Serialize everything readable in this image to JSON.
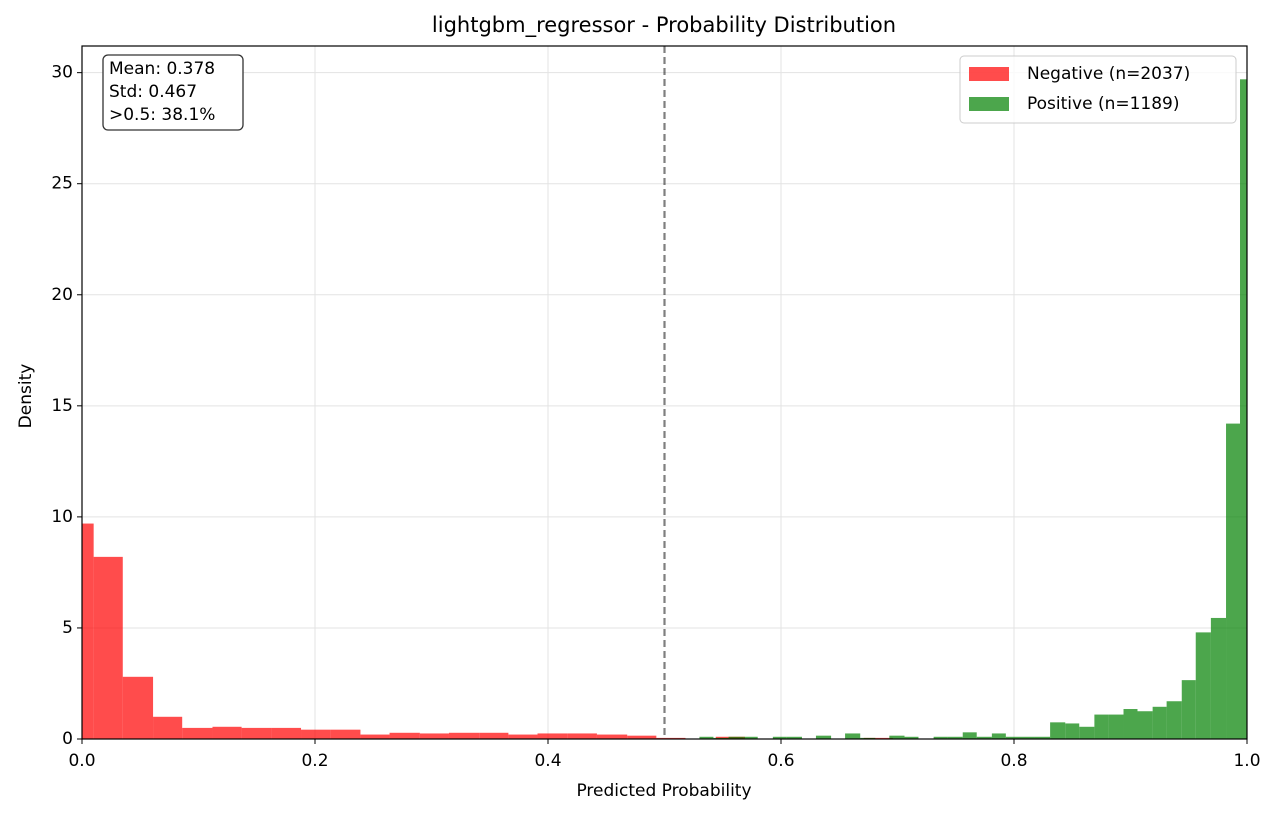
{
  "chart_data": {
    "type": "histogram",
    "title": "lightgbm_regressor - Probability Distribution",
    "xlabel": "Predicted Probability",
    "ylabel": "Density",
    "xlim": [
      0,
      1
    ],
    "ylim": [
      0,
      31.2
    ],
    "xticks": [
      {
        "value": 0,
        "label": "0.0"
      },
      0.2,
      0.4,
      0.6,
      0.8,
      {
        "value": 1,
        "label": "1.0"
      }
    ],
    "yticks": [
      0,
      5,
      10,
      15,
      20,
      25,
      30
    ],
    "grid": true,
    "alpha": 0.7,
    "legend": "upper right",
    "threshold": 0.5,
    "annotation": [
      "Mean: 0.378",
      "Std: 0.467",
      ">0.5: 38.1%"
    ],
    "series": [
      {
        "name": "Negative (n=2037)",
        "color": "#ff0000",
        "bins": [
          -0.015,
          0.01,
          0.035,
          0.061,
          0.086,
          0.112,
          0.137,
          0.163,
          0.188,
          0.213,
          0.239,
          0.264,
          0.29,
          0.315,
          0.341,
          0.366,
          0.391,
          0.417,
          0.442,
          0.468,
          0.493,
          0.518,
          0.544,
          0.569,
          0.595,
          0.62,
          0.645,
          0.671,
          0.696
        ],
        "values": [
          9.7,
          8.2,
          2.8,
          1.0,
          0.5,
          0.55,
          0.5,
          0.5,
          0.42,
          0.42,
          0.2,
          0.28,
          0.25,
          0.28,
          0.28,
          0.2,
          0.25,
          0.25,
          0.2,
          0.15,
          0.05,
          0,
          0.1,
          0,
          0,
          0,
          0,
          0.05
        ]
      },
      {
        "name": "Positive (n=1189)",
        "color": "#008000",
        "bins": [
          0.517,
          0.53,
          0.542,
          0.555,
          0.568,
          0.58,
          0.593,
          0.605,
          0.618,
          0.63,
          0.643,
          0.655,
          0.668,
          0.681,
          0.693,
          0.706,
          0.718,
          0.731,
          0.743,
          0.756,
          0.768,
          0.781,
          0.793,
          0.806,
          0.818,
          0.831,
          0.844,
          0.856,
          0.869,
          0.881,
          0.894,
          0.906,
          0.919,
          0.931,
          0.944,
          0.956,
          0.969,
          0.982,
          0.994,
          1.007
        ],
        "values": [
          0,
          0.1,
          0.05,
          0.1,
          0.1,
          0,
          0.1,
          0.1,
          0,
          0.15,
          0,
          0.25,
          0.05,
          0,
          0.15,
          0.1,
          0,
          0.1,
          0.1,
          0.3,
          0.1,
          0.25,
          0.1,
          0.1,
          0.1,
          0.75,
          0.7,
          0.55,
          1.1,
          1.1,
          1.35,
          1.25,
          1.45,
          1.7,
          2.65,
          4.8,
          5.45,
          14.2,
          29.7
        ]
      }
    ]
  }
}
